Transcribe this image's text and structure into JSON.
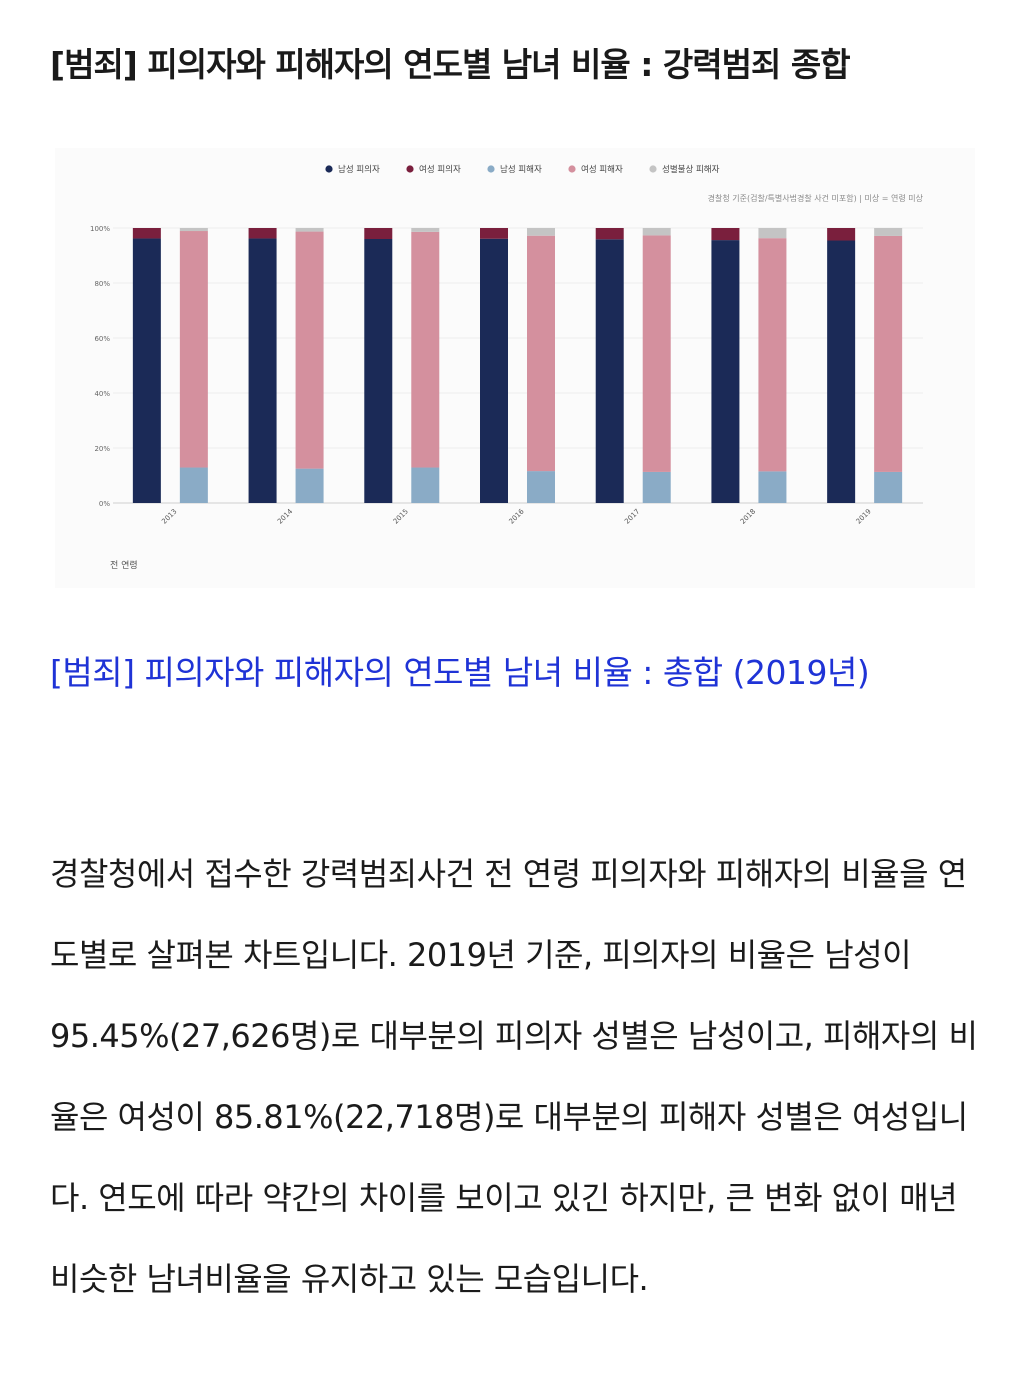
{
  "page": {
    "title": "[범죄] 피의자와 피해자의 연도별 남녀 비율 : 강력범죄 종합",
    "link_heading": "[범죄] 피의자와 피해자의 연도별 남녀 비율 : 총합 (2019년)",
    "body_text": "경찰청에서 접수한 강력범죄사건 전 연령 피의자와 피해자의 비율을 연도별로 살펴본 차트입니다. 2019년 기준, 피의자의 비율은 남성이 95.45%(27,626명)로 대부분의 피의자 성별은 남성이고, 피해자의 비율은 여성이 85.81%(22,718명)로 대부분의 피해자 성별은 여성입니다. 연도에 따라 약간의 차이를 보이고 있긴 하지만, 큰 변화 없이 매년 비슷한 남녀비율을 유지하고 있는 모습입니다."
  },
  "chart_data": {
    "type": "bar",
    "stacked": true,
    "note": "경찰청 기준(검찰/특별사법경찰 사건 미포함) | 미상 = 연령 미상",
    "footer_label": "전 연령",
    "legend_position": "top-center",
    "grid": true,
    "ylim": [
      0,
      100
    ],
    "y_ticks": [
      "0%",
      "20%",
      "40%",
      "60%",
      "80%",
      "100%"
    ],
    "categories": [
      "2013",
      "2014",
      "2015",
      "2016",
      "2017",
      "2018",
      "2019"
    ],
    "legend": [
      {
        "name": "남성 피의자",
        "color": "#1b2a57"
      },
      {
        "name": "여성 피의자",
        "color": "#7a1f3d"
      },
      {
        "name": "남성 피해자",
        "color": "#8aabc6"
      },
      {
        "name": "여성 피해자",
        "color": "#d4909e"
      },
      {
        "name": "성별불상 피해자",
        "color": "#c4c4c4"
      }
    ],
    "groups": [
      {
        "stack": "suspect",
        "series": [
          {
            "name": "남성 피의자",
            "color": "#1b2a57",
            "values": [
              96.2,
              96.2,
              96.0,
              96.1,
              95.9,
              95.6,
              95.45
            ]
          },
          {
            "name": "여성 피의자",
            "color": "#7a1f3d",
            "values": [
              3.8,
              3.8,
              4.0,
              3.9,
              4.1,
              4.4,
              4.55
            ]
          }
        ]
      },
      {
        "stack": "victim",
        "series": [
          {
            "name": "남성 피해자",
            "color": "#8aabc6",
            "values": [
              12.9,
              12.5,
              12.9,
              11.6,
              11.3,
              11.5,
              11.3
            ]
          },
          {
            "name": "여성 피해자",
            "color": "#d4909e",
            "values": [
              86.0,
              86.2,
              85.7,
              85.6,
              86.0,
              84.8,
              85.81
            ]
          },
          {
            "name": "성별불상 피해자",
            "color": "#c4c4c4",
            "values": [
              1.1,
              1.3,
              1.4,
              2.8,
              2.7,
              3.7,
              2.89
            ]
          }
        ]
      }
    ]
  }
}
